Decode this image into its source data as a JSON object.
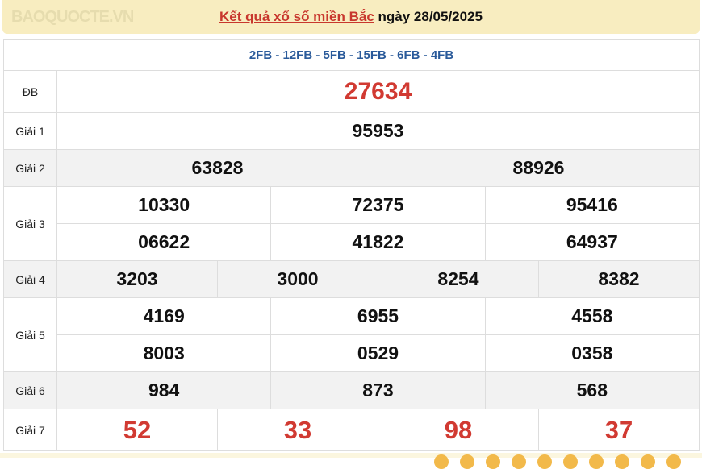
{
  "header": {
    "link": "Kết quả xổ số miền Bắc",
    "date_text": " ngày 28/05/2025"
  },
  "codes": "2FB - 12FB - 5FB - 15FB - 6FB - 4FB",
  "prizes": [
    {
      "label": "ĐB",
      "rows": [
        [
          "27634"
        ]
      ]
    },
    {
      "label": "Giải 1",
      "rows": [
        [
          "95953"
        ]
      ]
    },
    {
      "label": "Giải 2",
      "rows": [
        [
          "63828",
          "88926"
        ]
      ]
    },
    {
      "label": "Giải 3",
      "rows": [
        [
          "10330",
          "72375",
          "95416"
        ],
        [
          "06622",
          "41822",
          "64937"
        ]
      ]
    },
    {
      "label": "Giải 4",
      "rows": [
        [
          "3203",
          "3000",
          "8254",
          "8382"
        ]
      ]
    },
    {
      "label": "Giải 5",
      "rows": [
        [
          "4169",
          "6955",
          "4558"
        ],
        [
          "8003",
          "0529",
          "0358"
        ]
      ]
    },
    {
      "label": "Giải 6",
      "rows": [
        [
          "984",
          "873",
          "568"
        ]
      ]
    },
    {
      "label": "Giải 7",
      "rows": [
        [
          "52",
          "33",
          "98",
          "37"
        ]
      ]
    }
  ],
  "watermark": "BAOQUOCTE.VN",
  "colors": {
    "accent_red": "#d13a32",
    "code_blue": "#2a5a9a",
    "header_bg": "#f8edc0"
  }
}
